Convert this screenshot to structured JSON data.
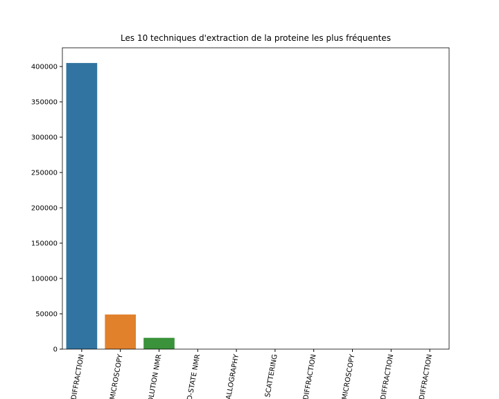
{
  "chart_data": {
    "type": "bar",
    "title": "Les 10 techniques d'extraction de la proteine les plus fréquentes",
    "categories": [
      "DIFFRACTION",
      "MICROSCOPY",
      "OLUTION NMR",
      "D-STATE NMR",
      "ALLOGRAPHY",
      "SCATTERING",
      "DIFFRACTION",
      "MICROSCOPY",
      "DIFFRACTION",
      "DIFFRACTION"
    ],
    "values": [
      405000,
      49000,
      16000,
      0,
      0,
      0,
      0,
      0,
      0,
      0
    ],
    "colors": [
      "#3274a1",
      "#e1812c",
      "#3a923a",
      "#c03d3e",
      "#9372b2",
      "#845b53",
      "#d684bd",
      "#7f7f7f",
      "#a9aa35",
      "#2e9fbb"
    ],
    "ylim": [
      0,
      426500
    ],
    "yticks": [
      0,
      50000,
      100000,
      150000,
      200000,
      250000,
      300000,
      350000,
      400000
    ],
    "grid": false
  }
}
